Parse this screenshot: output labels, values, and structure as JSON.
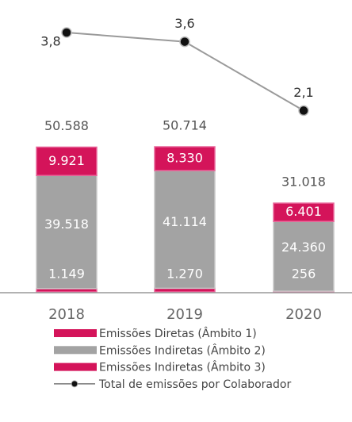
{
  "chart_data": {
    "type": "bar",
    "categories": [
      "2018",
      "2019",
      "2020"
    ],
    "series": [
      {
        "name": "Emissões Diretas (Âmbito 1)",
        "color": "#d4145a",
        "values": [
          1149,
          1270,
          256
        ],
        "value_labels": [
          "1.149",
          "1.270",
          "256"
        ]
      },
      {
        "name": "Emissões Indiretas (Âmbito 2)",
        "color": "#a3a3a3",
        "values": [
          39518,
          41114,
          24360
        ],
        "value_labels": [
          "39.518",
          "41.114",
          "24.360"
        ]
      },
      {
        "name": "Emissões Indiretas (Âmbito 3)",
        "color": "#d4145a",
        "values": [
          9921,
          8330,
          6401
        ],
        "value_labels": [
          "9.921",
          "8.330",
          "6.401"
        ]
      },
      {
        "name": "Total de emissões por Colaborador",
        "type": "line",
        "axis": "y2",
        "color": "#9a9a9a",
        "values": [
          3.8,
          3.6,
          2.1
        ],
        "value_labels": [
          "3,8",
          "3,6",
          "2,1"
        ]
      }
    ],
    "totals": {
      "values": [
        50588,
        50714,
        31018
      ],
      "value_labels": [
        "50.588",
        "50.714",
        "31.018"
      ]
    }
  }
}
